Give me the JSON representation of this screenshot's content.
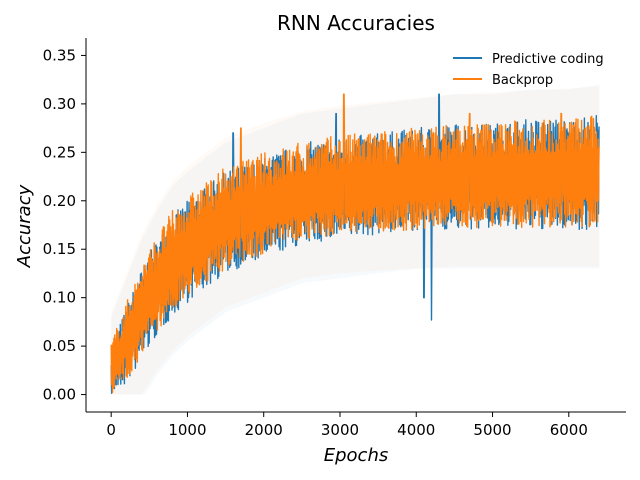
{
  "chart_data": {
    "type": "line",
    "title": "RNN Accuracies",
    "xlabel": "Epochs",
    "ylabel": "Accuracy",
    "xlim": [
      -330,
      6750
    ],
    "ylim": [
      -0.018,
      0.368
    ],
    "xticks": [
      0,
      1000,
      2000,
      3000,
      4000,
      5000,
      6000
    ],
    "xtick_labels": [
      "0",
      "1000",
      "2000",
      "3000",
      "4000",
      "5000",
      "6000"
    ],
    "yticks": [
      0.0,
      0.05,
      0.1,
      0.15,
      0.2,
      0.25,
      0.3,
      0.35
    ],
    "ytick_labels": [
      "0.00",
      "0.05",
      "0.10",
      "0.15",
      "0.20",
      "0.25",
      "0.30",
      "0.35"
    ],
    "grid": false,
    "legend_position": "top-right",
    "noise_spread_note": "dense per-epoch noise band around the trend",
    "series": [
      {
        "name": "Predictive coding",
        "color": "#1f77b4",
        "x": [
          0,
          200,
          400,
          600,
          800,
          1000,
          1500,
          2000,
          2500,
          3000,
          3500,
          4000,
          4500,
          5000,
          5500,
          6000,
          6400
        ],
        "y": [
          0.02,
          0.055,
          0.085,
          0.11,
          0.13,
          0.148,
          0.175,
          0.19,
          0.2,
          0.207,
          0.212,
          0.216,
          0.219,
          0.221,
          0.223,
          0.224,
          0.225
        ],
        "low": [
          0.0,
          0.01,
          0.035,
          0.06,
          0.08,
          0.095,
          0.125,
          0.14,
          0.155,
          0.16,
          0.165,
          0.17,
          0.17,
          0.17,
          0.17,
          0.17,
          0.17
        ],
        "high": [
          0.05,
          0.09,
          0.13,
          0.16,
          0.185,
          0.2,
          0.23,
          0.245,
          0.26,
          0.265,
          0.27,
          0.275,
          0.28,
          0.28,
          0.285,
          0.285,
          0.29
        ],
        "outliers": [
          [
            4100,
            0.1
          ],
          [
            4200,
            0.077
          ],
          [
            4300,
            0.31
          ],
          [
            2950,
            0.29
          ],
          [
            1600,
            0.27
          ]
        ]
      },
      {
        "name": "Backprop",
        "color": "#ff7f0e",
        "x": [
          0,
          200,
          400,
          600,
          800,
          1000,
          1500,
          2000,
          2500,
          3000,
          3500,
          4000,
          4500,
          5000,
          5500,
          6000,
          6400
        ],
        "y": [
          0.022,
          0.058,
          0.088,
          0.112,
          0.132,
          0.15,
          0.177,
          0.192,
          0.202,
          0.209,
          0.214,
          0.218,
          0.221,
          0.223,
          0.225,
          0.226,
          0.227
        ],
        "low": [
          0.0,
          0.015,
          0.04,
          0.065,
          0.085,
          0.1,
          0.13,
          0.145,
          0.16,
          0.165,
          0.168,
          0.17,
          0.172,
          0.172,
          0.172,
          0.172,
          0.172
        ],
        "high": [
          0.055,
          0.095,
          0.135,
          0.165,
          0.19,
          0.205,
          0.235,
          0.25,
          0.262,
          0.268,
          0.272,
          0.276,
          0.28,
          0.282,
          0.284,
          0.286,
          0.288
        ],
        "outliers": [
          [
            3050,
            0.31
          ],
          [
            1700,
            0.275
          ],
          [
            4700,
            0.29
          ],
          [
            5900,
            0.29
          ]
        ]
      }
    ]
  }
}
